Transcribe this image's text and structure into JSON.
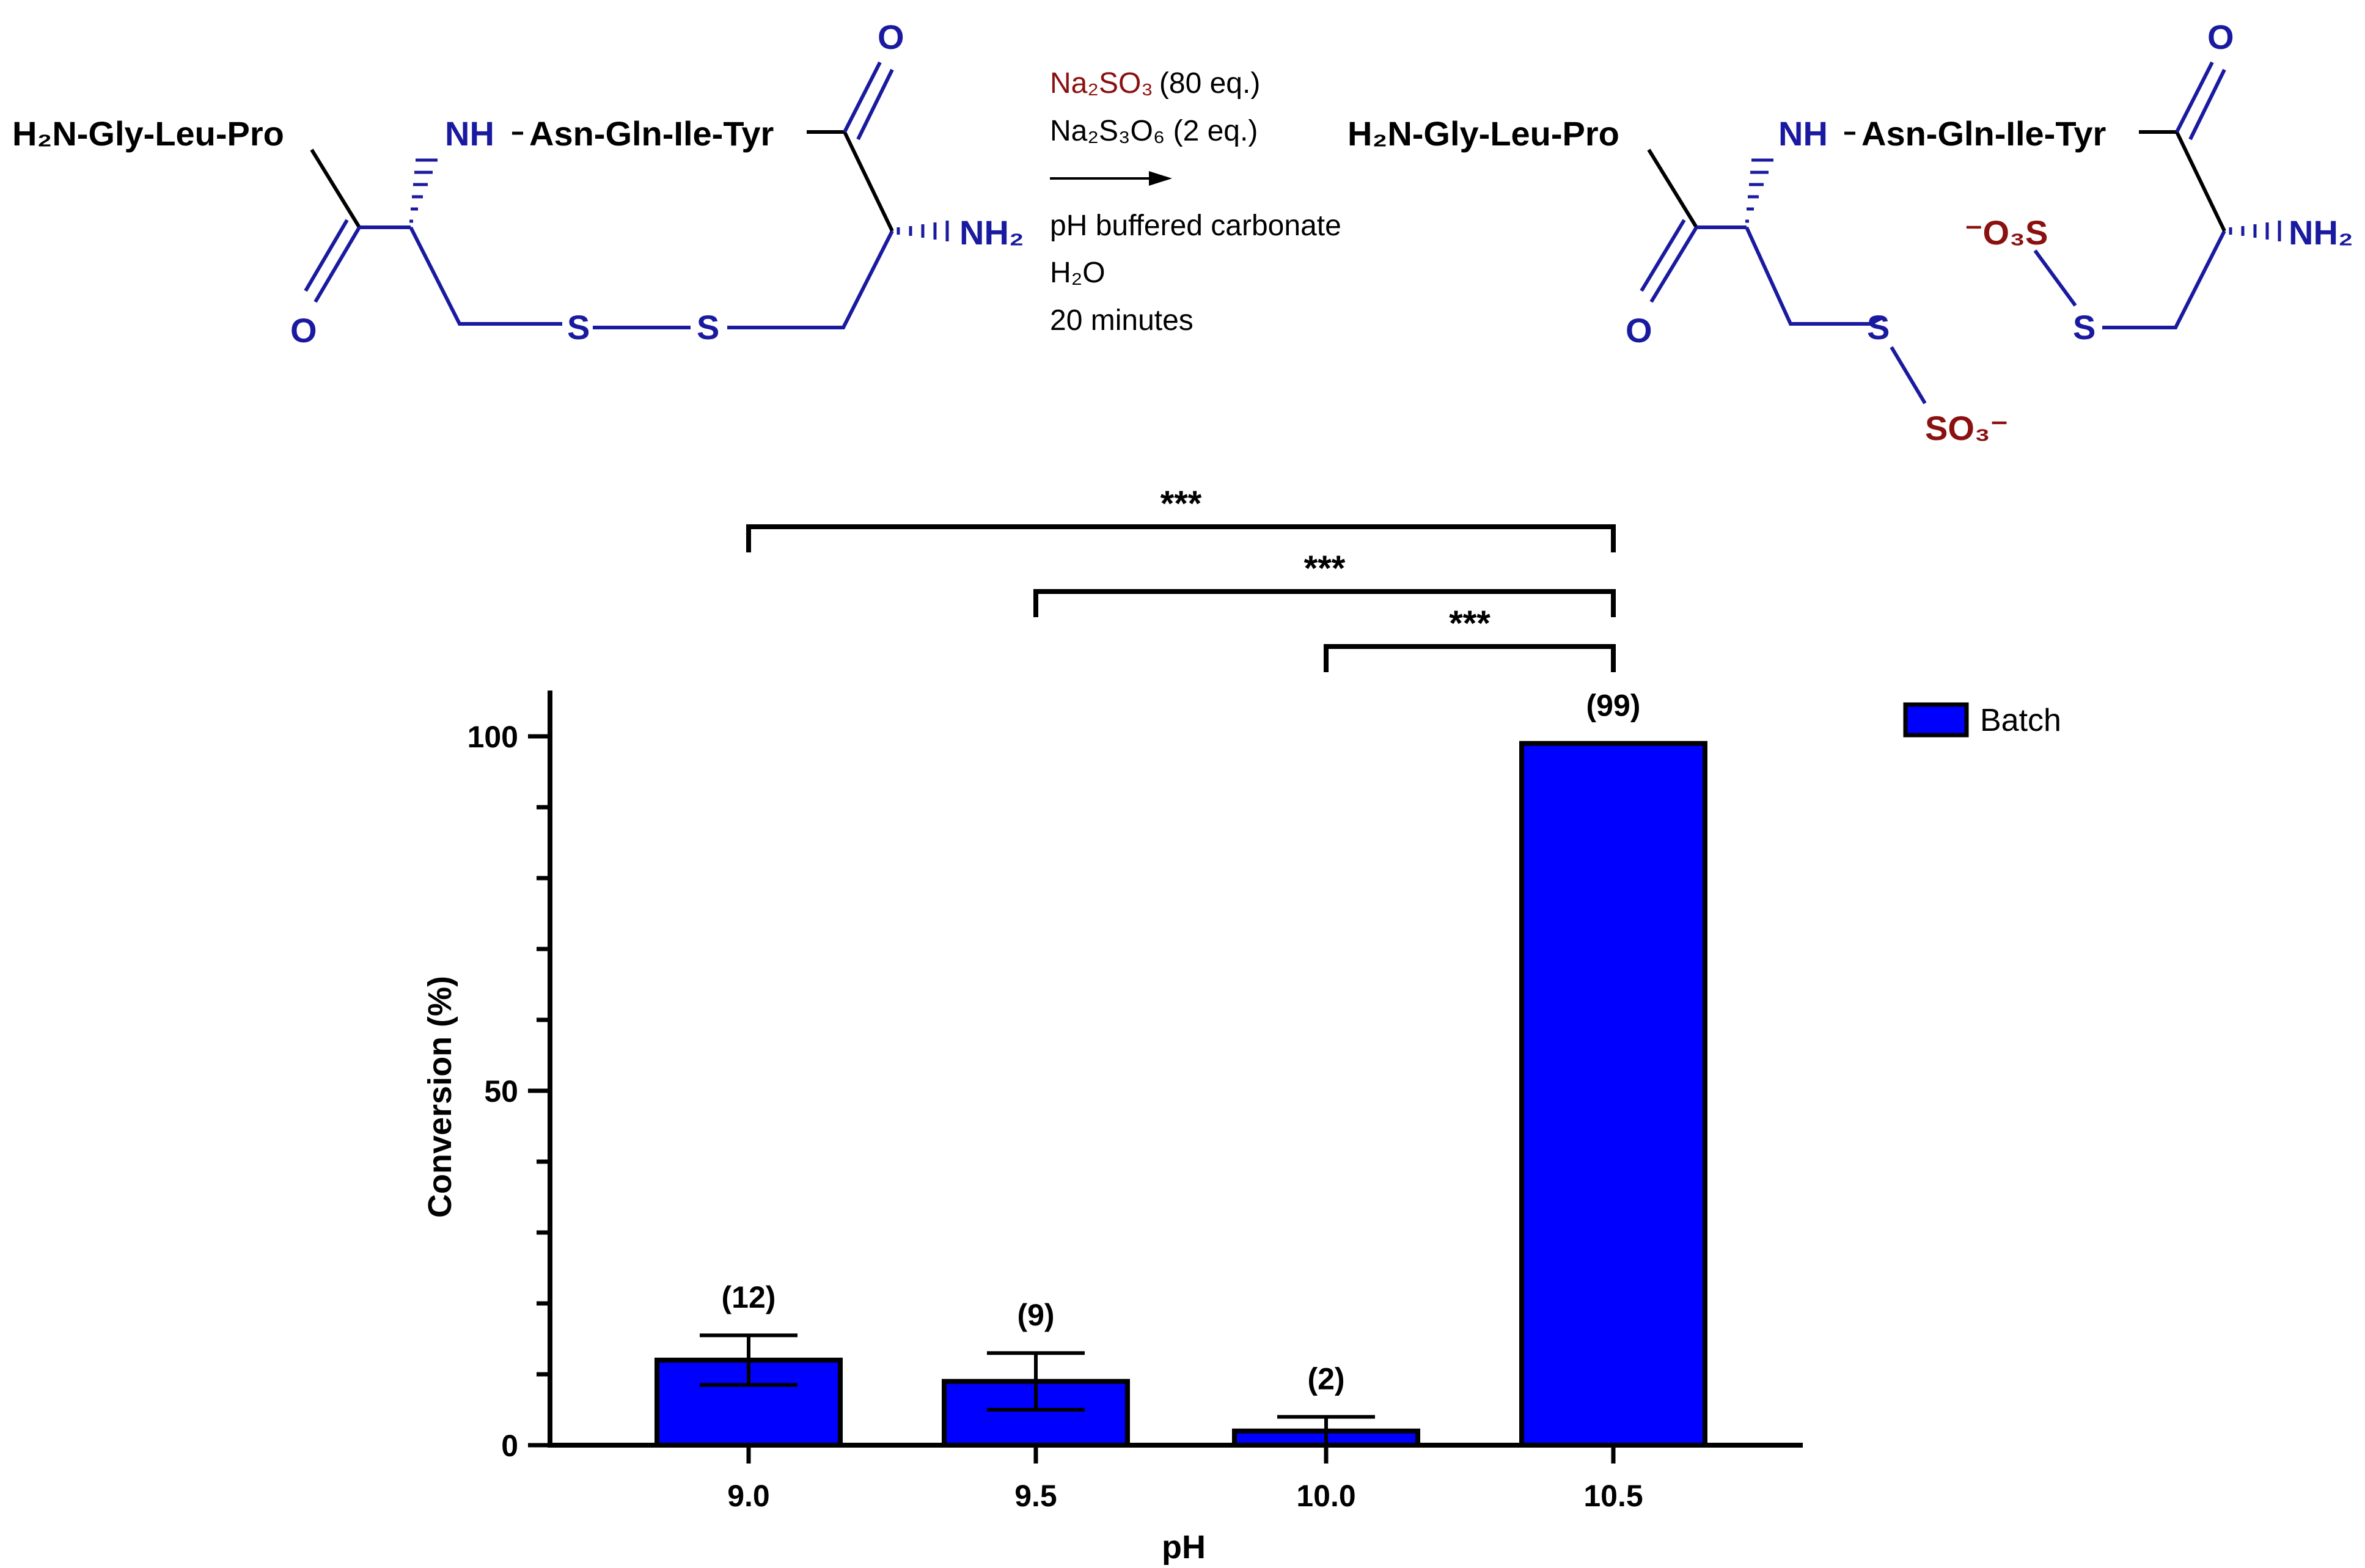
{
  "scheme": {
    "reactant": {
      "left_chain": "H₂N-Gly-Leu-Pro",
      "nh": "NH",
      "mid_chain": "Asn-Gln-Ile-Tyr",
      "o_top": "O",
      "o_bottom": "O",
      "nh2": "NH₂",
      "s1": "S",
      "s2": "S"
    },
    "conditions": {
      "reagent1": "Na₂SO₃",
      "reagent1_eq": "(80 eq.)",
      "reagent2": "Na₂S₃O₆ (2 eq.)",
      "buffer": "pH buffered carbonate",
      "solvent": "H₂O",
      "time": "20 minutes"
    },
    "product": {
      "left_chain": "H₂N-Gly-Leu-Pro",
      "nh": "NH",
      "mid_chain": "Asn-Gln-Ile-Tyr",
      "o_top": "O",
      "o_bottom": "O",
      "nh2": "NH₂",
      "s_left": "S",
      "so3_left": "SO₃⁻",
      "s_right": "S",
      "o3s_right": "⁻O₃S"
    }
  },
  "colors": {
    "bar": "#0000ff",
    "structure_blue": "#1a1aa0",
    "reagent_red": "#8b1010",
    "black": "#000000"
  },
  "chart_data": {
    "type": "bar",
    "categories": [
      "9.0",
      "9.5",
      "10.0",
      "10.5"
    ],
    "series": [
      {
        "name": "Batch",
        "values": [
          12,
          9,
          2,
          99
        ],
        "errors": [
          3.5,
          4,
          2,
          0
        ]
      }
    ],
    "value_labels": [
      "(12)",
      "(9)",
      "(2)",
      "(99)"
    ],
    "xlabel": "pH",
    "ylabel": "Conversion (%)",
    "ylim": [
      0,
      100
    ],
    "yticks": [
      "0",
      "50",
      "100"
    ],
    "legend": "right",
    "grid": false,
    "significance": [
      {
        "from": "9.0",
        "to": "10.5",
        "label": "***"
      },
      {
        "from": "9.5",
        "to": "10.5",
        "label": "***"
      },
      {
        "from": "10.0",
        "to": "10.5",
        "label": "***"
      }
    ]
  }
}
